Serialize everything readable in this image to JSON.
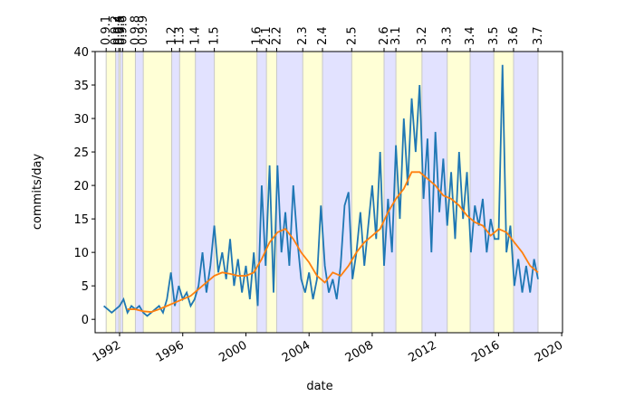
{
  "chart_data": {
    "type": "line",
    "xlabel": "date",
    "ylabel": "commits/day",
    "xlim": [
      1990.45,
      2020.05
    ],
    "xticks": [
      1992,
      1996,
      2000,
      2004,
      2008,
      2012,
      2016,
      2020
    ],
    "ylim": [
      -2,
      40
    ],
    "yticks": [
      0,
      5,
      10,
      15,
      20,
      25,
      30,
      35,
      40
    ],
    "band_colors": [
      "#ffffd6",
      "#e2e2ff"
    ],
    "releases": [
      {
        "label": "0.9.1",
        "x": 1991.15
      },
      {
        "label": "0.9.2",
        "x": 1991.75
      },
      {
        "label": "0.9.4",
        "x": 1991.95
      },
      {
        "label": "0.9.5",
        "x": 1992.05
      },
      {
        "label": "0.9.6",
        "x": 1992.2
      },
      {
        "label": "0.9.8",
        "x": 1993.0
      },
      {
        "label": "0.9.9",
        "x": 1993.5
      },
      {
        "label": "1.2",
        "x": 1995.3
      },
      {
        "label": "1.3",
        "x": 1995.8
      },
      {
        "label": "1.4",
        "x": 1996.8
      },
      {
        "label": "1.5",
        "x": 1998.0
      },
      {
        "label": "1.6",
        "x": 2000.7
      },
      {
        "label": "2.1",
        "x": 2001.3
      },
      {
        "label": "2.2",
        "x": 2001.95
      },
      {
        "label": "2.3",
        "x": 2003.6
      },
      {
        "label": "2.4",
        "x": 2004.85
      },
      {
        "label": "2.5",
        "x": 2006.7
      },
      {
        "label": "2.6",
        "x": 2008.75
      },
      {
        "label": "3.1",
        "x": 2009.5
      },
      {
        "label": "3.2",
        "x": 2011.15
      },
      {
        "label": "3.3",
        "x": 2012.75
      },
      {
        "label": "3.4",
        "x": 2014.2
      },
      {
        "label": "3.5",
        "x": 2015.7
      },
      {
        "label": "3.6",
        "x": 2016.95
      },
      {
        "label": "3.7",
        "x": 2018.5
      }
    ],
    "series": [
      {
        "color": "#1f77b4",
        "x": [
          1991.0,
          1991.25,
          1991.5,
          1991.75,
          1992.0,
          1992.25,
          1992.5,
          1992.75,
          1993.0,
          1993.25,
          1993.5,
          1993.75,
          1994.0,
          1994.25,
          1994.5,
          1994.75,
          1995.0,
          1995.25,
          1995.5,
          1995.75,
          1996.0,
          1996.25,
          1996.5,
          1996.75,
          1997.0,
          1997.25,
          1997.5,
          1997.75,
          1998.0,
          1998.25,
          1998.5,
          1998.75,
          1999.0,
          1999.25,
          1999.5,
          1999.75,
          2000.0,
          2000.25,
          2000.5,
          2000.75,
          2001.0,
          2001.25,
          2001.5,
          2001.75,
          2002.0,
          2002.25,
          2002.5,
          2002.75,
          2003.0,
          2003.25,
          2003.5,
          2003.75,
          2004.0,
          2004.25,
          2004.5,
          2004.75,
          2005.0,
          2005.25,
          2005.5,
          2005.75,
          2006.0,
          2006.25,
          2006.5,
          2006.75,
          2007.0,
          2007.25,
          2007.5,
          2007.75,
          2008.0,
          2008.25,
          2008.5,
          2008.75,
          2009.0,
          2009.25,
          2009.5,
          2009.75,
          2010.0,
          2010.25,
          2010.5,
          2010.75,
          2011.0,
          2011.25,
          2011.5,
          2011.75,
          2012.0,
          2012.25,
          2012.5,
          2012.75,
          2013.0,
          2013.25,
          2013.5,
          2013.75,
          2014.0,
          2014.25,
          2014.5,
          2014.75,
          2015.0,
          2015.25,
          2015.5,
          2015.75,
          2016.0,
          2016.25,
          2016.5,
          2016.75,
          2017.0,
          2017.25,
          2017.5,
          2017.75,
          2018.0,
          2018.25,
          2018.5
        ],
        "values": [
          2,
          1.5,
          1,
          1.5,
          2,
          3,
          1,
          2,
          1.5,
          2,
          1,
          0.5,
          1,
          1.5,
          2,
          1,
          3,
          7,
          2,
          5,
          3,
          4,
          2,
          3,
          5,
          10,
          4,
          8,
          14,
          7,
          10,
          6,
          12,
          5,
          9,
          4,
          8,
          3,
          10,
          2,
          20,
          8,
          23,
          4,
          23,
          10,
          16,
          8,
          20,
          12,
          6,
          4,
          7,
          3,
          6,
          17,
          8,
          4,
          6,
          3,
          8,
          17,
          19,
          6,
          10,
          16,
          8,
          14,
          20,
          12,
          25,
          8,
          18,
          10,
          26,
          15,
          30,
          20,
          33,
          25,
          35,
          18,
          27,
          10,
          28,
          16,
          24,
          14,
          22,
          12,
          25,
          15,
          22,
          10,
          17,
          14,
          18,
          10,
          15,
          12,
          12,
          38,
          10,
          14,
          5,
          9,
          4,
          8,
          4,
          9,
          6
        ]
      },
      {
        "color": "#ff7f0e",
        "x": [
          1992.5,
          1993.0,
          1993.5,
          1994.0,
          1994.5,
          1995.0,
          1995.5,
          1996.0,
          1996.5,
          1997.0,
          1997.5,
          1998.0,
          1998.5,
          1999.0,
          1999.5,
          2000.0,
          2000.5,
          2001.0,
          2001.5,
          2002.0,
          2002.5,
          2003.0,
          2003.5,
          2004.0,
          2004.5,
          2005.0,
          2005.5,
          2006.0,
          2006.5,
          2007.0,
          2007.5,
          2008.0,
          2008.5,
          2009.0,
          2009.5,
          2010.0,
          2010.5,
          2011.0,
          2011.5,
          2012.0,
          2012.5,
          2013.0,
          2013.5,
          2014.0,
          2014.5,
          2015.0,
          2015.5,
          2016.0,
          2016.5,
          2017.0,
          2017.5,
          2018.0,
          2018.5
        ],
        "values": [
          1.5,
          1.5,
          1.2,
          1.1,
          1.5,
          2,
          2.5,
          3,
          3.5,
          4.5,
          5.5,
          6.5,
          7,
          6.8,
          6.5,
          6.5,
          7,
          9,
          11.5,
          13,
          13.5,
          12,
          10,
          8.5,
          6.5,
          5.5,
          7,
          6.5,
          8,
          10,
          11.5,
          12.5,
          13.5,
          16,
          18,
          19.5,
          22,
          22,
          21,
          20,
          18.5,
          18,
          17,
          15.5,
          14.5,
          14,
          12.5,
          13.5,
          13,
          11.5,
          10,
          8,
          7
        ]
      }
    ]
  }
}
